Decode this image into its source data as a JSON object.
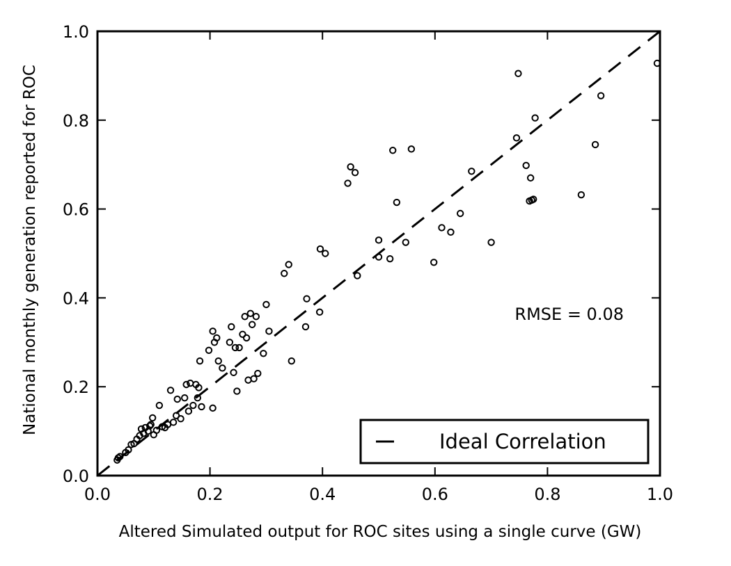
{
  "chart_data": {
    "type": "scatter",
    "title": "",
    "xlabel": "Altered Simulated output for ROC sites using a single curve (GW)",
    "ylabel": "National monthly generation reported for ROC",
    "xlim": [
      0.0,
      1.0
    ],
    "ylim": [
      0.0,
      1.0
    ],
    "xticks": [
      "0.0",
      "0.2",
      "0.4",
      "0.6",
      "0.8",
      "1.0"
    ],
    "yticks": [
      "0.0",
      "0.2",
      "0.4",
      "0.6",
      "0.8",
      "1.0"
    ],
    "grid": false,
    "legend": {
      "position": "bottom-right",
      "entries": [
        "Ideal Correlation"
      ]
    },
    "annotation": "RMSE = 0.08",
    "reference_line": {
      "name": "Ideal Correlation",
      "x": [
        0.0,
        1.0
      ],
      "y": [
        0.0,
        1.0
      ],
      "style": "dashed",
      "color": "#000000"
    },
    "marker": {
      "style": "open-circle",
      "color": "#000000"
    },
    "series": [
      {
        "points": [
          [
            0.035,
            0.035
          ],
          [
            0.037,
            0.04
          ],
          [
            0.04,
            0.043
          ],
          [
            0.05,
            0.052
          ],
          [
            0.055,
            0.058
          ],
          [
            0.06,
            0.07
          ],
          [
            0.065,
            0.072
          ],
          [
            0.07,
            0.082
          ],
          [
            0.075,
            0.09
          ],
          [
            0.078,
            0.105
          ],
          [
            0.082,
            0.095
          ],
          [
            0.085,
            0.108
          ],
          [
            0.09,
            0.1
          ],
          [
            0.093,
            0.112
          ],
          [
            0.095,
            0.115
          ],
          [
            0.098,
            0.13
          ],
          [
            0.1,
            0.092
          ],
          [
            0.105,
            0.102
          ],
          [
            0.11,
            0.158
          ],
          [
            0.115,
            0.11
          ],
          [
            0.12,
            0.108
          ],
          [
            0.125,
            0.115
          ],
          [
            0.13,
            0.192
          ],
          [
            0.135,
            0.12
          ],
          [
            0.14,
            0.135
          ],
          [
            0.142,
            0.172
          ],
          [
            0.148,
            0.128
          ],
          [
            0.155,
            0.175
          ],
          [
            0.158,
            0.205
          ],
          [
            0.162,
            0.145
          ],
          [
            0.165,
            0.208
          ],
          [
            0.17,
            0.158
          ],
          [
            0.175,
            0.205
          ],
          [
            0.178,
            0.175
          ],
          [
            0.18,
            0.198
          ],
          [
            0.182,
            0.258
          ],
          [
            0.185,
            0.155
          ],
          [
            0.198,
            0.282
          ],
          [
            0.205,
            0.152
          ],
          [
            0.205,
            0.325
          ],
          [
            0.208,
            0.3
          ],
          [
            0.212,
            0.31
          ],
          [
            0.215,
            0.258
          ],
          [
            0.222,
            0.242
          ],
          [
            0.235,
            0.3
          ],
          [
            0.238,
            0.335
          ],
          [
            0.242,
            0.232
          ],
          [
            0.245,
            0.288
          ],
          [
            0.248,
            0.19
          ],
          [
            0.252,
            0.288
          ],
          [
            0.258,
            0.318
          ],
          [
            0.262,
            0.358
          ],
          [
            0.265,
            0.31
          ],
          [
            0.268,
            0.215
          ],
          [
            0.272,
            0.365
          ],
          [
            0.275,
            0.34
          ],
          [
            0.278,
            0.218
          ],
          [
            0.282,
            0.358
          ],
          [
            0.285,
            0.23
          ],
          [
            0.295,
            0.275
          ],
          [
            0.3,
            0.385
          ],
          [
            0.305,
            0.325
          ],
          [
            0.332,
            0.455
          ],
          [
            0.34,
            0.475
          ],
          [
            0.345,
            0.258
          ],
          [
            0.37,
            0.335
          ],
          [
            0.372,
            0.398
          ],
          [
            0.395,
            0.368
          ],
          [
            0.396,
            0.51
          ],
          [
            0.405,
            0.5
          ],
          [
            0.445,
            0.658
          ],
          [
            0.45,
            0.695
          ],
          [
            0.458,
            0.682
          ],
          [
            0.462,
            0.45
          ],
          [
            0.5,
            0.53
          ],
          [
            0.5,
            0.492
          ],
          [
            0.52,
            0.488
          ],
          [
            0.525,
            0.732
          ],
          [
            0.532,
            0.615
          ],
          [
            0.548,
            0.525
          ],
          [
            0.558,
            0.735
          ],
          [
            0.598,
            0.48
          ],
          [
            0.612,
            0.558
          ],
          [
            0.628,
            0.548
          ],
          [
            0.645,
            0.59
          ],
          [
            0.665,
            0.685
          ],
          [
            0.7,
            0.525
          ],
          [
            0.745,
            0.76
          ],
          [
            0.748,
            0.905
          ],
          [
            0.762,
            0.698
          ],
          [
            0.768,
            0.618
          ],
          [
            0.77,
            0.67
          ],
          [
            0.772,
            0.62
          ],
          [
            0.775,
            0.622
          ],
          [
            0.778,
            0.805
          ],
          [
            0.86,
            0.632
          ],
          [
            0.885,
            0.745
          ],
          [
            0.895,
            0.855
          ],
          [
            0.995,
            0.928
          ]
        ]
      }
    ]
  }
}
